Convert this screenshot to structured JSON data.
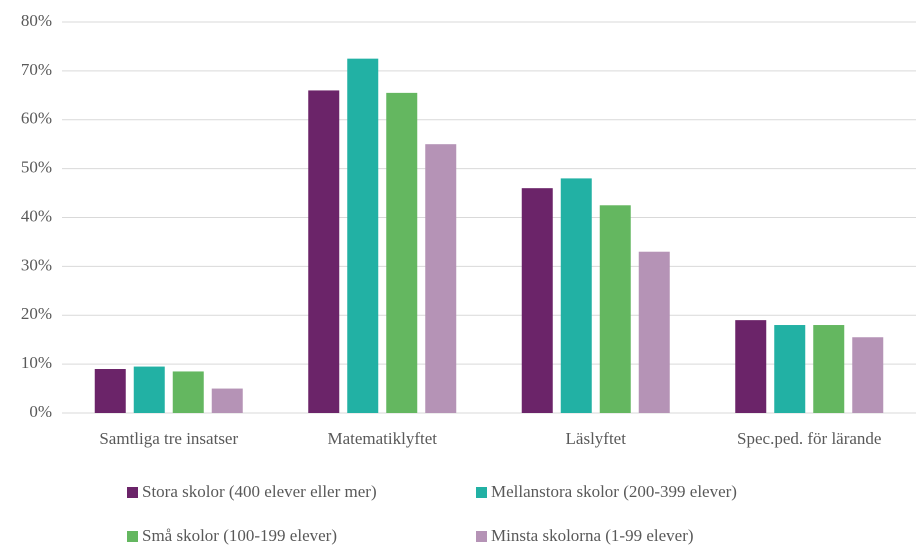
{
  "chart_data": {
    "type": "bar",
    "categories": [
      "Samtliga tre insatser",
      "Matematiklyftet",
      "Läslyftet",
      "Spec.ped. för lärande"
    ],
    "series": [
      {
        "name": "Stora skolor (400 elever eller mer)",
        "color": "#6b2469",
        "values": [
          9,
          66,
          46,
          19
        ]
      },
      {
        "name": "Mellanstora skolor (200-399 elever)",
        "color": "#22b1a4",
        "values": [
          9.5,
          72.5,
          48,
          18
        ]
      },
      {
        "name": "Små skolor (100-199 elever)",
        "color": "#64b760",
        "values": [
          8.5,
          65.5,
          42.5,
          18
        ]
      },
      {
        "name": "Minsta skolorna (1-99 elever)",
        "color": "#b593b6",
        "values": [
          5,
          55,
          33,
          15.5
        ]
      }
    ],
    "ylim": [
      0,
      80
    ],
    "yticks": [
      {
        "value": 0,
        "label": "0%"
      },
      {
        "value": 10,
        "label": "10%"
      },
      {
        "value": 20,
        "label": "20%"
      },
      {
        "value": 30,
        "label": "30%"
      },
      {
        "value": 40,
        "label": "40%"
      },
      {
        "value": 50,
        "label": "50%"
      },
      {
        "value": 60,
        "label": "60%"
      },
      {
        "value": 70,
        "label": "70%"
      },
      {
        "value": 80,
        "label": "80%"
      }
    ],
    "grid": true
  }
}
